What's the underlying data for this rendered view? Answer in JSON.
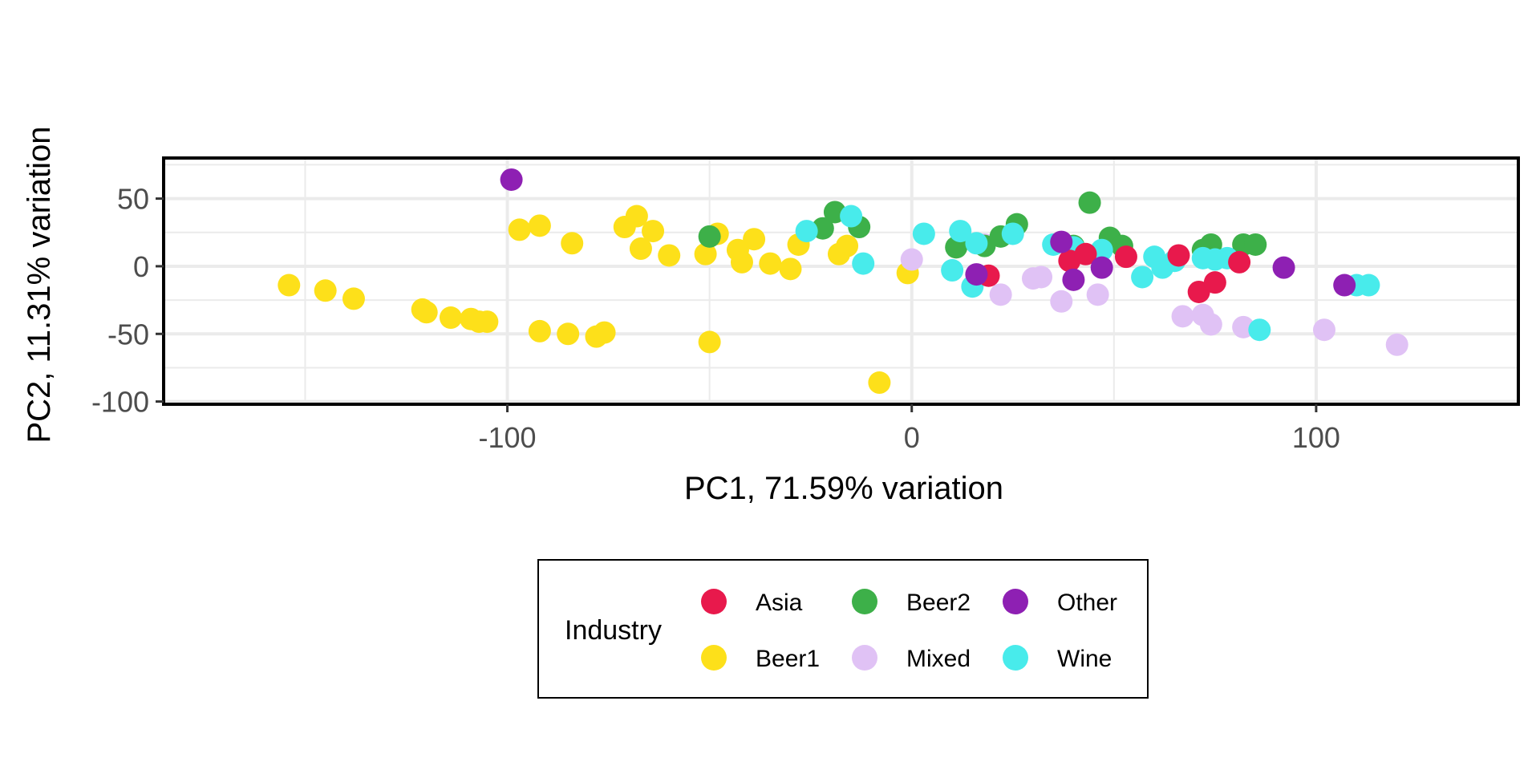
{
  "chart_data": {
    "type": "scatter",
    "title": "",
    "xlabel": "PC1, 71.59% variation",
    "ylabel": "PC2, 11.31% variation",
    "xlim": [
      -185,
      150
    ],
    "ylim": [
      -102,
      80
    ],
    "x_ticks": [
      -100,
      0,
      100
    ],
    "x_tick_labels": [
      "-100",
      "0",
      "100"
    ],
    "y_ticks": [
      50,
      0,
      -50,
      -100
    ],
    "y_tick_labels": [
      "50",
      "0",
      "-50",
      "-100"
    ],
    "grid": true,
    "legend": {
      "title": "Industry",
      "position": "bottom",
      "entries": [
        "Asia",
        "Beer2",
        "Other",
        "Beer1",
        "Mixed",
        "Wine"
      ]
    },
    "series": [
      {
        "name": "Beer1",
        "color": "#FDE01A",
        "points": [
          [
            -154,
            -14
          ],
          [
            -145,
            -18
          ],
          [
            -138,
            -24
          ],
          [
            -121,
            -32
          ],
          [
            -120,
            -34
          ],
          [
            -114,
            -38
          ],
          [
            -109,
            -39
          ],
          [
            -107,
            -41
          ],
          [
            -105,
            -41
          ],
          [
            -97,
            27
          ],
          [
            -92,
            30
          ],
          [
            -84,
            17
          ],
          [
            -92,
            -48
          ],
          [
            -85,
            -50
          ],
          [
            -78,
            -52
          ],
          [
            -76,
            -49
          ],
          [
            -71,
            29
          ],
          [
            -68,
            37
          ],
          [
            -64,
            26
          ],
          [
            -67,
            13
          ],
          [
            -60,
            8
          ],
          [
            -51,
            9
          ],
          [
            -48,
            24
          ],
          [
            -43,
            12
          ],
          [
            -42,
            3
          ],
          [
            -39,
            20
          ],
          [
            -35,
            2
          ],
          [
            -30,
            -2
          ],
          [
            -28,
            16
          ],
          [
            -18,
            9
          ],
          [
            -16,
            15
          ],
          [
            -50,
            -56
          ],
          [
            -8,
            -86
          ],
          [
            -1,
            -5
          ]
        ]
      },
      {
        "name": "Mixed",
        "color": "#E0C2F5",
        "points": [
          [
            0,
            5
          ],
          [
            18,
            16
          ],
          [
            22,
            -21
          ],
          [
            30,
            -9
          ],
          [
            32,
            -8
          ],
          [
            37,
            -26
          ],
          [
            46,
            -21
          ],
          [
            67,
            -37
          ],
          [
            72,
            -36
          ],
          [
            74,
            -43
          ],
          [
            82,
            -45
          ],
          [
            102,
            -47
          ],
          [
            120,
            -58
          ]
        ]
      },
      {
        "name": "Beer2",
        "color": "#3DB049",
        "points": [
          [
            -50,
            22
          ],
          [
            -22,
            28
          ],
          [
            -19,
            40
          ],
          [
            -13,
            29
          ],
          [
            11,
            14
          ],
          [
            18,
            15
          ],
          [
            22,
            22
          ],
          [
            26,
            31
          ],
          [
            40,
            15
          ],
          [
            44,
            47
          ],
          [
            49,
            21
          ],
          [
            52,
            15
          ],
          [
            72,
            12
          ],
          [
            74,
            16
          ],
          [
            82,
            16
          ],
          [
            85,
            16
          ]
        ]
      },
      {
        "name": "Wine",
        "color": "#48EBEB",
        "points": [
          [
            -26,
            26
          ],
          [
            -15,
            37
          ],
          [
            -12,
            2
          ],
          [
            3,
            24
          ],
          [
            10,
            -3
          ],
          [
            12,
            26
          ],
          [
            15,
            -15
          ],
          [
            16,
            17
          ],
          [
            25,
            24
          ],
          [
            35,
            16
          ],
          [
            40,
            14
          ],
          [
            47,
            12
          ],
          [
            57,
            -8
          ],
          [
            60,
            7
          ],
          [
            62,
            -1
          ],
          [
            65,
            4
          ],
          [
            72,
            6
          ],
          [
            75,
            5
          ],
          [
            78,
            6
          ],
          [
            86,
            -47
          ],
          [
            110,
            -14
          ],
          [
            113,
            -14
          ]
        ]
      },
      {
        "name": "Asia",
        "color": "#E8194C",
        "points": [
          [
            19,
            -7
          ],
          [
            39,
            4
          ],
          [
            43,
            9
          ],
          [
            53,
            7
          ],
          [
            66,
            8
          ],
          [
            71,
            -19
          ],
          [
            75,
            -12
          ],
          [
            81,
            3
          ]
        ]
      },
      {
        "name": "Other",
        "color": "#8E20B3",
        "points": [
          [
            -99,
            64
          ],
          [
            16,
            -6
          ],
          [
            37,
            18
          ],
          [
            40,
            -10
          ],
          [
            47,
            -1
          ],
          [
            92,
            -1
          ],
          [
            107,
            -14
          ]
        ]
      }
    ]
  }
}
